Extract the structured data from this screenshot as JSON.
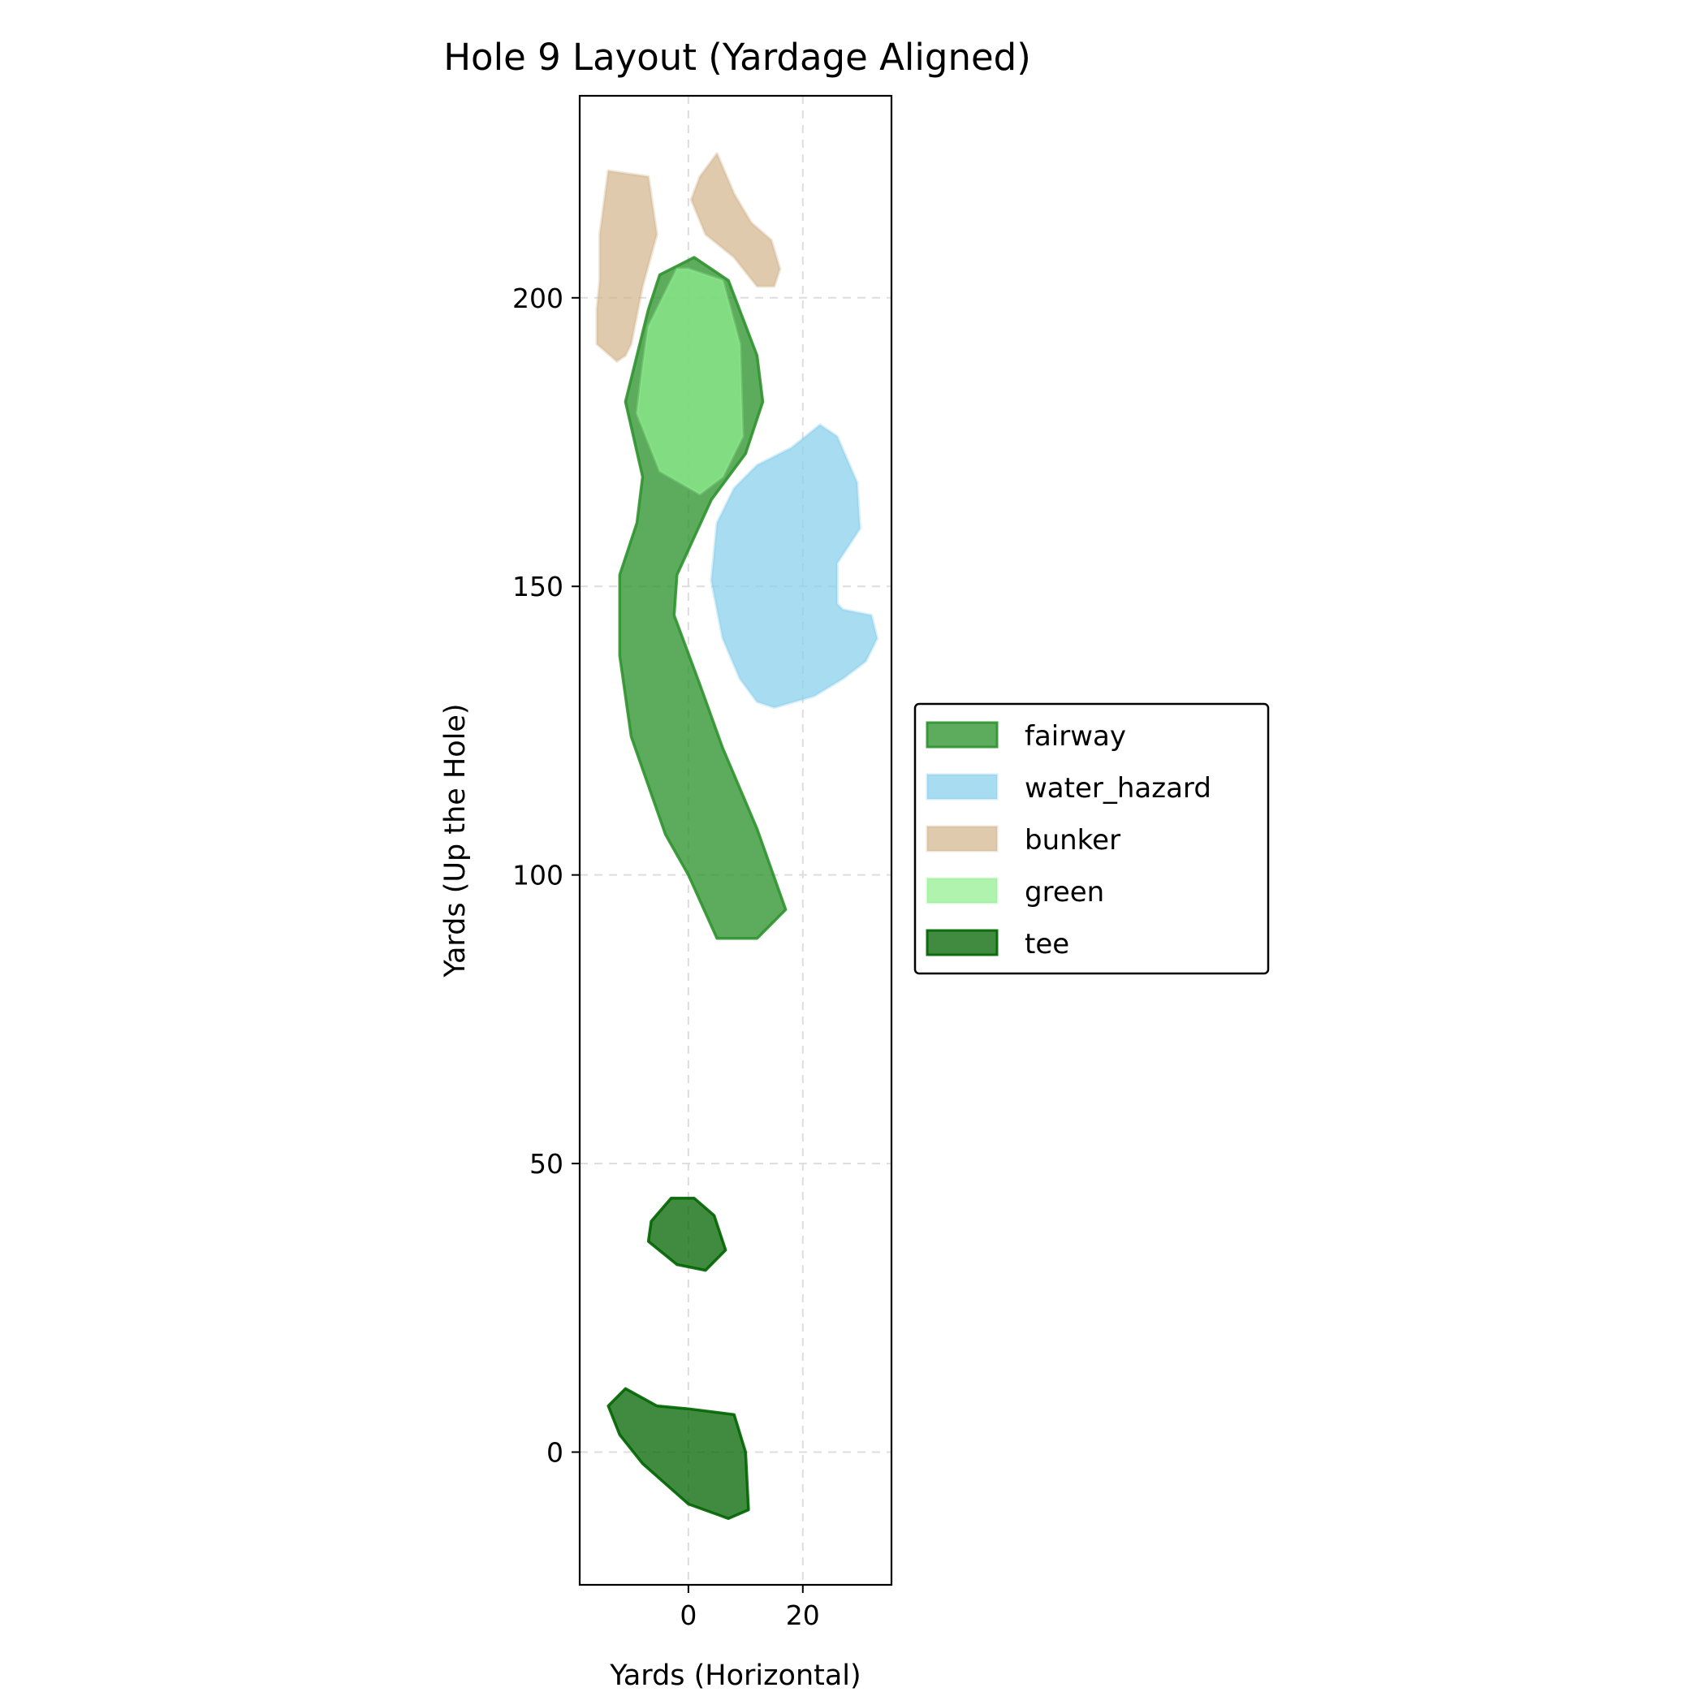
{
  "chart_data": {
    "type": "area",
    "title": "Hole 9 Layout (Yardage Aligned)",
    "xlabel": "Yards (Horizontal)",
    "ylabel": "Yards (Up the Hole)",
    "xlim": [
      -19,
      35.5
    ],
    "ylim": [
      -23,
      235
    ],
    "xticks": [
      0,
      20
    ],
    "yticks": [
      0,
      50,
      100,
      150,
      200
    ],
    "grid": true,
    "legend_position": "center-right",
    "legend": [
      "fairway",
      "water_hazard",
      "bunker",
      "green",
      "tee"
    ],
    "colors": {
      "fairway": "#2f932f",
      "water_hazard": "#87ceeb",
      "bunker": "#d2b48c",
      "green": "#90ee90",
      "tee": "#006400"
    },
    "series": [
      {
        "name": "fairway",
        "polygons": [
          [
            [
              -5,
              204
            ],
            [
              1,
              207
            ],
            [
              7,
              203
            ],
            [
              12,
              190
            ],
            [
              13,
              182
            ],
            [
              10,
              173
            ],
            [
              4,
              165
            ],
            [
              -2,
              152
            ],
            [
              -2.5,
              145
            ],
            [
              2,
              133
            ],
            [
              6,
              122
            ],
            [
              12,
              108
            ],
            [
              17,
              94
            ],
            [
              12,
              89
            ],
            [
              5,
              89
            ],
            [
              0,
              100
            ],
            [
              -4,
              107
            ],
            [
              -10,
              124
            ],
            [
              -12,
              138
            ],
            [
              -12,
              152
            ],
            [
              -9,
              161
            ],
            [
              -8,
              169
            ],
            [
              -11,
              182
            ],
            [
              -7,
              198
            ]
          ]
        ]
      },
      {
        "name": "water_hazard",
        "polygons": [
          [
            [
              23,
              178
            ],
            [
              26,
              176
            ],
            [
              29.5,
              168
            ],
            [
              30,
              160
            ],
            [
              26,
              154
            ],
            [
              26,
              147
            ],
            [
              27,
              146
            ],
            [
              32,
              145
            ],
            [
              33,
              141
            ],
            [
              31,
              137
            ],
            [
              27,
              134
            ],
            [
              22,
              131
            ],
            [
              15,
              129
            ],
            [
              12,
              130
            ],
            [
              9,
              134
            ],
            [
              6,
              141
            ],
            [
              4,
              151
            ],
            [
              5,
              161
            ],
            [
              8,
              167
            ],
            [
              12,
              171
            ],
            [
              18,
              174
            ]
          ]
        ]
      },
      {
        "name": "bunker",
        "polygons": [
          [
            [
              -14,
              222
            ],
            [
              -7,
              221
            ],
            [
              -5.5,
              211
            ],
            [
              -8,
              202
            ],
            [
              -10,
              192
            ],
            [
              -11,
              190
            ],
            [
              -12.5,
              189
            ],
            [
              -16,
              192
            ],
            [
              -16,
              198
            ],
            [
              -15.5,
              203
            ],
            [
              -15.5,
              211
            ]
          ],
          [
            [
              2,
              221
            ],
            [
              5,
              225
            ],
            [
              8,
              218
            ],
            [
              11,
              213
            ],
            [
              14.5,
              210
            ],
            [
              16,
              205
            ],
            [
              15,
              202
            ],
            [
              12,
              202
            ],
            [
              8,
              207
            ],
            [
              3,
              211
            ],
            [
              0.5,
              217
            ]
          ]
        ]
      },
      {
        "name": "green",
        "polygons": [
          [
            [
              -2,
              205
            ],
            [
              0,
              205
            ],
            [
              6,
              203
            ],
            [
              9,
              192
            ],
            [
              9.5,
              176
            ],
            [
              6,
              169
            ],
            [
              2,
              166
            ],
            [
              -5,
              170
            ],
            [
              -9,
              180
            ],
            [
              -8,
              188
            ],
            [
              -7,
              195
            ]
          ]
        ]
      },
      {
        "name": "tee",
        "polygons": [
          [
            [
              -3,
              44
            ],
            [
              1,
              44
            ],
            [
              4.5,
              41
            ],
            [
              6.5,
              35
            ],
            [
              3,
              31.5
            ],
            [
              -2,
              32.5
            ],
            [
              -7,
              36.5
            ],
            [
              -6.5,
              40
            ]
          ],
          [
            [
              -14,
              8
            ],
            [
              -11,
              11
            ],
            [
              -5.5,
              8
            ],
            [
              0,
              7.5
            ],
            [
              8,
              6.5
            ],
            [
              10,
              0
            ],
            [
              10.5,
              -10
            ],
            [
              7,
              -11.5
            ],
            [
              0,
              -9
            ],
            [
              -8,
              -2
            ],
            [
              -12,
              3
            ]
          ]
        ]
      }
    ]
  }
}
